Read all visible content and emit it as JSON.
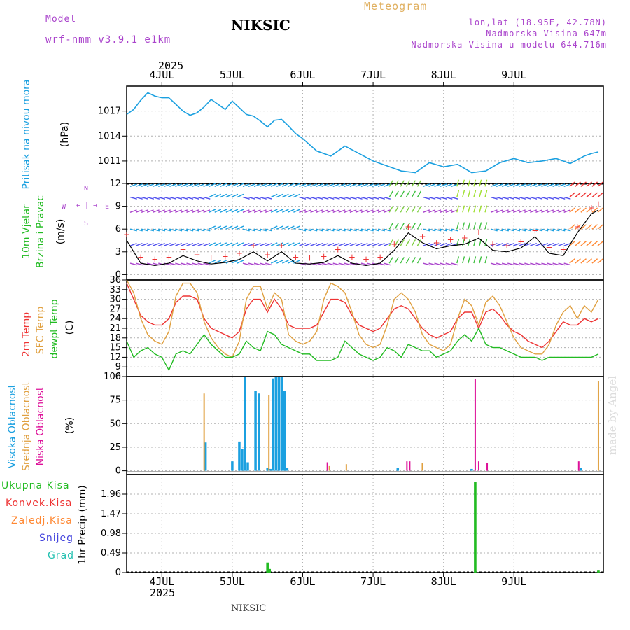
{
  "header": {
    "title": "NIKSIC",
    "meteogram": "Meteogram",
    "model_label": "Model",
    "model_name": "wrf-nmm_v3.9.1 e1km",
    "coords": "lon,lat (18.95E, 42.78N)",
    "elevation": "Nadmorska Visina 647m",
    "model_elevation": "Nadmorska Visina u modelu 644.716m",
    "year": "2025",
    "footer_station": "NIKSIC",
    "watermark": "made by Angel"
  },
  "colors": {
    "pressure": "#1ba0e0",
    "cyan": "#1ba0e0",
    "green": "#22bb22",
    "red": "#ee3333",
    "orange": "#ff8833",
    "tan": "#e0a040",
    "magenta": "#dd1199",
    "blue_dark": "#4444dd",
    "teal": "#22c0b0",
    "purple": "#aa44cc",
    "black": "#000000"
  },
  "chart_data": [
    {
      "type": "line",
      "id": "pressure",
      "xlabel": "",
      "ylabel": "Pritisak na nivou mora",
      "unit": "(hPa)",
      "yticks": [
        1011,
        1014,
        1017
      ],
      "ylim": [
        1008.3,
        1020.0
      ],
      "x_days": [
        -0.5,
        -0.4,
        -0.3,
        -0.2,
        -0.1,
        0.0,
        0.1,
        0.2,
        0.3,
        0.4,
        0.5,
        0.6,
        0.7,
        0.8,
        0.9,
        1.0,
        1.1,
        1.2,
        1.3,
        1.4,
        1.5,
        1.6,
        1.7,
        1.8,
        1.9,
        2.0,
        2.2,
        2.4,
        2.6,
        2.8,
        3.0,
        3.2,
        3.4,
        3.6,
        3.8,
        4.0,
        4.2,
        4.4,
        4.6,
        4.8,
        5.0,
        5.2,
        5.4,
        5.6,
        5.8,
        6.0,
        6.1,
        6.2
      ],
      "values": [
        1016.6,
        1017.2,
        1018.3,
        1019.2,
        1018.8,
        1018.6,
        1018.6,
        1017.8,
        1017.0,
        1016.5,
        1016.8,
        1017.5,
        1018.4,
        1017.8,
        1017.2,
        1018.2,
        1017.4,
        1016.6,
        1016.4,
        1015.8,
        1015.1,
        1015.9,
        1016.0,
        1015.2,
        1014.3,
        1013.7,
        1012.2,
        1011.6,
        1012.8,
        1011.9,
        1011.0,
        1010.4,
        1009.8,
        1009.6,
        1010.8,
        1010.3,
        1010.6,
        1009.6,
        1009.8,
        1010.8,
        1011.3,
        1010.8,
        1011.0,
        1011.3,
        1010.7,
        1011.6,
        1011.9,
        1012.1
      ]
    },
    {
      "type": "line",
      "id": "wind",
      "ylabel": "10m Vjetar Brzina i Pravac",
      "unit": "(m/s)",
      "yticks": [
        0,
        3,
        6,
        9,
        12
      ],
      "ylim": [
        -0.7,
        12.0
      ],
      "compass": [
        "N",
        "W",
        "E",
        "S"
      ],
      "x_days": [
        -0.5,
        -0.3,
        -0.1,
        0.1,
        0.3,
        0.5,
        0.7,
        0.9,
        1.1,
        1.3,
        1.5,
        1.7,
        1.9,
        2.1,
        2.3,
        2.5,
        2.7,
        2.9,
        3.1,
        3.3,
        3.5,
        3.7,
        3.9,
        4.1,
        4.3,
        4.5,
        4.7,
        4.9,
        5.1,
        5.3,
        5.5,
        5.7,
        5.9,
        6.1,
        6.2
      ],
      "speed": [
        4.5,
        1.5,
        1.2,
        1.5,
        2.5,
        1.8,
        1.4,
        1.6,
        2.0,
        3.0,
        1.8,
        3.0,
        1.5,
        1.4,
        1.6,
        2.5,
        1.5,
        1.2,
        1.5,
        3.2,
        5.5,
        4.2,
        3.4,
        3.8,
        4.0,
        4.8,
        3.2,
        3.0,
        3.5,
        5.0,
        2.8,
        2.5,
        5.5,
        8.0,
        8.5
      ]
    },
    {
      "type": "line",
      "id": "temperature",
      "ylabel": "2m Temp",
      "unit": "(C)",
      "yticks": [
        6,
        9,
        12,
        15,
        18,
        21,
        24,
        27,
        30,
        33,
        36
      ],
      "ylim": [
        6,
        36
      ],
      "x_days": [
        -0.5,
        -0.4,
        -0.3,
        -0.2,
        -0.1,
        0.0,
        0.1,
        0.2,
        0.3,
        0.4,
        0.5,
        0.6,
        0.7,
        0.8,
        0.9,
        1.0,
        1.1,
        1.2,
        1.3,
        1.4,
        1.5,
        1.6,
        1.7,
        1.8,
        1.9,
        2.0,
        2.1,
        2.2,
        2.3,
        2.4,
        2.5,
        2.6,
        2.7,
        2.8,
        2.9,
        3.0,
        3.1,
        3.2,
        3.3,
        3.4,
        3.5,
        3.6,
        3.7,
        3.8,
        3.9,
        4.0,
        4.1,
        4.2,
        4.3,
        4.4,
        4.5,
        4.6,
        4.7,
        4.8,
        4.9,
        5.0,
        5.1,
        5.2,
        5.3,
        5.4,
        5.5,
        5.6,
        5.7,
        5.8,
        5.9,
        6.0,
        6.1,
        6.2
      ],
      "series": [
        {
          "name": "2m Temp",
          "color": "red",
          "values": [
            35,
            30,
            25,
            23,
            22,
            22,
            24,
            29,
            31,
            31,
            30,
            24,
            21,
            20,
            19,
            18,
            20,
            27,
            30,
            30,
            26,
            30,
            27,
            22,
            21,
            21,
            21,
            22,
            26,
            30,
            30,
            29,
            25,
            22,
            21,
            20,
            21,
            24,
            27,
            28,
            27,
            24,
            21,
            19,
            18,
            19,
            20,
            24,
            26,
            26,
            21,
            26,
            27,
            25,
            22,
            20,
            19,
            17,
            16,
            15,
            17,
            20,
            23,
            22,
            22,
            24,
            23,
            24
          ]
        },
        {
          "name": "SFC Temp",
          "color": "tan",
          "values": [
            36,
            32,
            24,
            19,
            17,
            16,
            20,
            31,
            35,
            35,
            32,
            23,
            18,
            15,
            13,
            12,
            17,
            30,
            34,
            34,
            27,
            32,
            30,
            19,
            17,
            16,
            17,
            20,
            30,
            35,
            34,
            32,
            26,
            19,
            16,
            15,
            16,
            22,
            30,
            32,
            30,
            26,
            19,
            16,
            15,
            14,
            16,
            24,
            30,
            28,
            22,
            29,
            31,
            28,
            23,
            18,
            15,
            14,
            13,
            13,
            16,
            22,
            26,
            28,
            24,
            28,
            26,
            30
          ]
        },
        {
          "name": "dewpt Temp",
          "color": "green",
          "values": [
            17,
            12,
            14,
            15,
            13,
            12,
            8,
            13,
            14,
            13,
            16,
            19,
            16,
            14,
            12,
            12,
            13,
            17,
            15,
            14,
            20,
            19,
            16,
            15,
            14,
            13,
            13,
            11,
            11,
            11,
            12,
            17,
            15,
            13,
            12,
            11,
            12,
            15,
            14,
            12,
            16,
            15,
            14,
            14,
            12,
            13,
            14,
            17,
            19,
            17,
            21,
            16,
            15,
            15,
            14,
            13,
            12,
            12,
            12,
            11,
            12,
            12,
            12,
            12,
            12,
            12,
            12,
            13
          ]
        }
      ]
    },
    {
      "type": "bar",
      "id": "clouds",
      "unit": "(%)",
      "yticks": [
        0,
        25,
        50,
        75,
        100
      ],
      "ylim": [
        -4,
        100
      ],
      "series_names": [
        "Visoka Oblacnost",
        "Srednja Oblacnost",
        "Niska Oblacnost"
      ],
      "series": [
        {
          "name": "Visoka Oblacnost",
          "color": "cyan",
          "x_days": [
            0.62,
            1.0,
            1.1,
            1.14,
            1.18,
            1.22,
            1.33,
            1.38,
            1.5,
            1.54,
            1.58,
            1.62,
            1.66,
            1.7,
            1.74,
            1.78,
            3.35,
            4.4,
            5.95
          ],
          "values": [
            30,
            10,
            31,
            23,
            100,
            9,
            85,
            82,
            3,
            2,
            98,
            100,
            100,
            100,
            85,
            3,
            3,
            2,
            3
          ]
        },
        {
          "name": "Srednja Oblacnost",
          "color": "tan",
          "x_days": [
            0.6,
            1.52,
            2.38,
            2.62,
            3.7,
            6.2
          ],
          "values": [
            82,
            80,
            5,
            7,
            8,
            95
          ]
        },
        {
          "name": "Niska Oblacnost",
          "color": "magenta",
          "x_days": [
            2.35,
            3.48,
            3.52,
            4.45,
            4.5,
            4.62,
            5.92
          ],
          "values": [
            9,
            10,
            10,
            97,
            10,
            8,
            10
          ]
        }
      ]
    },
    {
      "type": "bar",
      "id": "precip",
      "ylabel": "1hr Precip",
      "unit": "(mm)",
      "yticks": [
        0,
        0.49,
        0.98,
        1.47,
        1.96
      ],
      "ylim": [
        0,
        2.45
      ],
      "series_names": [
        "Ukupna Kisa",
        "Konvek.Kisa",
        "Zaledj.Kisa",
        "Snijeg",
        "Grad"
      ],
      "series": [
        {
          "name": "Ukupna Kisa",
          "color": "green",
          "x_days": [
            1.5,
            1.53,
            4.45,
            6.2
          ],
          "values": [
            0.25,
            0.09,
            2.27,
            0.05
          ]
        }
      ]
    }
  ],
  "x_axis": {
    "start_day": "4JUL",
    "tick_labels": [
      "4JUL",
      "5JUL",
      "6JUL",
      "7JUL",
      "8JUL",
      "9JUL"
    ],
    "range_days": [
      -0.5,
      6.27
    ]
  }
}
